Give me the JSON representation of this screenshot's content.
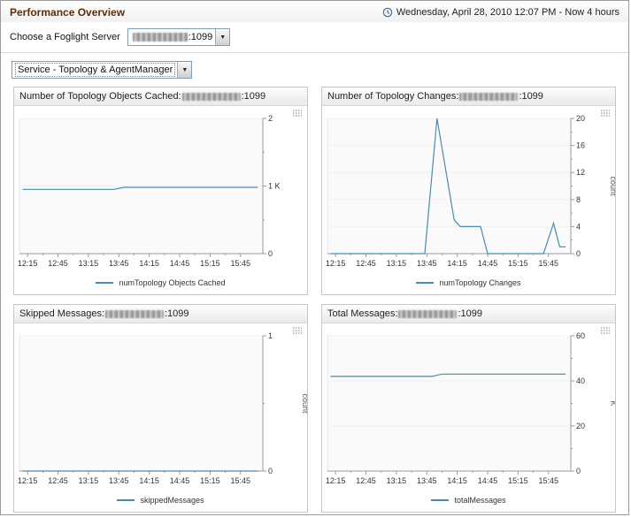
{
  "colors": {
    "chart_line": "#4a8bad",
    "title_text": "#5a2d0e",
    "axis": "#9a9a9a"
  },
  "header": {
    "title": "Performance Overview",
    "time_range": "Wednesday, April 28, 2010 12:07 PM - Now 4 hours"
  },
  "server_select": {
    "label": "Choose a Foglight Server",
    "value_suffix": ":1099"
  },
  "service_select": {
    "value": "Service - Topology & AgentManager"
  },
  "chart_data": [
    {
      "type": "line",
      "title": "Number of Topology Objects Cached: ",
      "title_suffix": ":1099",
      "legend": "numTopology Objects Cached",
      "x_domain": [
        "12:07",
        "16:07"
      ],
      "x_ticks": [
        "12:15",
        "12:45",
        "13:15",
        "13:45",
        "14:15",
        "14:45",
        "15:15",
        "15:45"
      ],
      "ylim": [
        0,
        2
      ],
      "y_ticks": [
        {
          "v": 0,
          "label": "0"
        },
        {
          "v": 1,
          "label": "1 K"
        },
        {
          "v": 2,
          "label": "2"
        }
      ],
      "ylabel": "",
      "grid": false,
      "legend_position": "bottom",
      "series": [
        {
          "name": "numTopology Objects Cached",
          "points": [
            [
              "12:10",
              0.95
            ],
            [
              "13:40",
              0.95
            ],
            [
              "13:50",
              0.98
            ],
            [
              "16:02",
              0.98
            ]
          ]
        }
      ]
    },
    {
      "type": "line",
      "title": "Number of Topology Changes: ",
      "title_suffix": ":1099",
      "legend": "numTopology Changes",
      "x_domain": [
        "12:07",
        "16:07"
      ],
      "x_ticks": [
        "12:15",
        "12:45",
        "13:15",
        "13:45",
        "14:15",
        "14:45",
        "15:15",
        "15:45"
      ],
      "ylim": [
        0,
        20
      ],
      "y_ticks": [
        {
          "v": 0,
          "label": "0"
        },
        {
          "v": 4,
          "label": "4"
        },
        {
          "v": 8,
          "label": "8"
        },
        {
          "v": 12,
          "label": "12"
        },
        {
          "v": 16,
          "label": "16"
        },
        {
          "v": 20,
          "label": "20"
        }
      ],
      "ylabel": "count",
      "grid": false,
      "legend_position": "bottom",
      "series": [
        {
          "name": "numTopology Changes",
          "points": [
            [
              "12:10",
              0
            ],
            [
              "13:43",
              0
            ],
            [
              "13:55",
              20
            ],
            [
              "14:12",
              5
            ],
            [
              "14:18",
              4
            ],
            [
              "14:38",
              4
            ],
            [
              "14:45",
              0
            ],
            [
              "15:40",
              0
            ],
            [
              "15:50",
              4.5
            ],
            [
              "15:56",
              1
            ],
            [
              "16:02",
              1
            ]
          ]
        }
      ]
    },
    {
      "type": "line",
      "title": "Skipped Messages: ",
      "title_suffix": ":1099",
      "legend": "skippedMessages",
      "x_domain": [
        "12:07",
        "16:07"
      ],
      "x_ticks": [
        "12:15",
        "12:45",
        "13:15",
        "13:45",
        "14:15",
        "14:45",
        "15:15",
        "15:45"
      ],
      "ylim": [
        0,
        1
      ],
      "y_ticks": [
        {
          "v": 0,
          "label": "0"
        },
        {
          "v": 1,
          "label": "1"
        }
      ],
      "ylabel": "count",
      "grid": false,
      "legend_position": "bottom",
      "series": [
        {
          "name": "skippedMessages",
          "points": [
            [
              "12:10",
              0
            ],
            [
              "16:02",
              0
            ]
          ]
        }
      ]
    },
    {
      "type": "line",
      "title": "Total Messages: ",
      "title_suffix": ":1099",
      "legend": "totalMessages",
      "x_domain": [
        "12:07",
        "16:07"
      ],
      "x_ticks": [
        "12:15",
        "12:45",
        "13:15",
        "13:45",
        "14:15",
        "14:45",
        "15:15",
        "15:45"
      ],
      "ylim": [
        0,
        60
      ],
      "y_ticks": [
        {
          "v": 0,
          "label": "0"
        },
        {
          "v": 20,
          "label": "20"
        },
        {
          "v": 40,
          "label": "40"
        },
        {
          "v": 60,
          "label": "60"
        }
      ],
      "ylabel": "K",
      "grid": false,
      "legend_position": "bottom",
      "series": [
        {
          "name": "totalMessages",
          "points": [
            [
              "12:10",
              42
            ],
            [
              "13:50",
              42
            ],
            [
              "14:00",
              43
            ],
            [
              "16:02",
              43
            ]
          ]
        }
      ]
    }
  ]
}
